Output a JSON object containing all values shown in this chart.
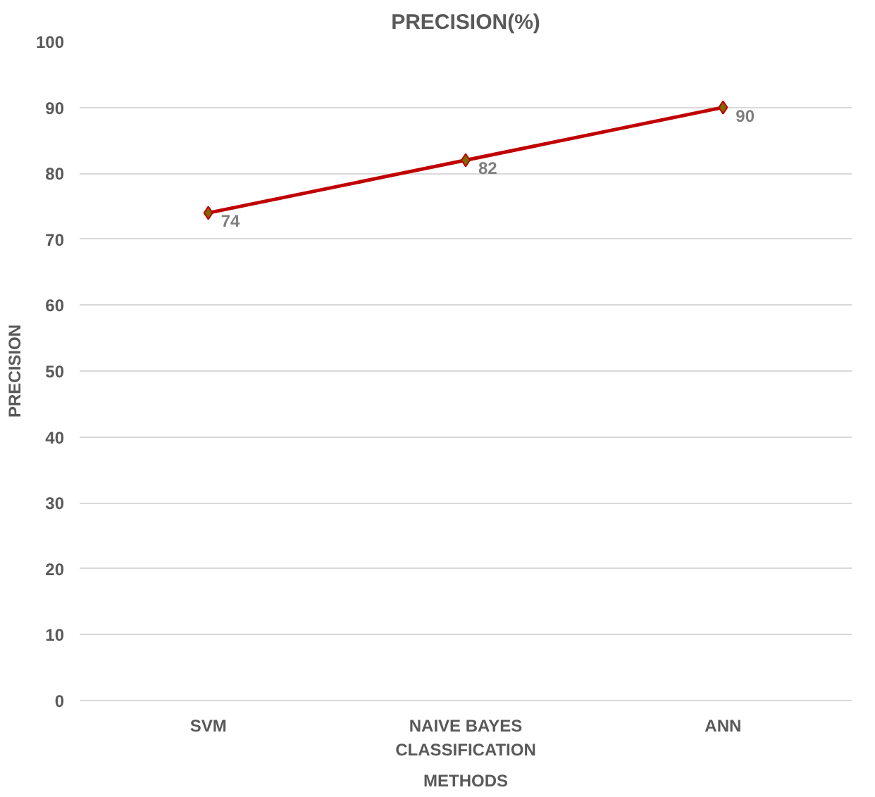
{
  "chart_data": {
    "type": "line",
    "title": "PRECISION(%)",
    "xlabel": "METHODS",
    "ylabel": "PRECISION",
    "categories": [
      "SVM",
      "NAIVE BAYES CLASSIFICATION",
      "ANN"
    ],
    "series": [
      {
        "color": "#c00000",
        "values": [
          74,
          82,
          90
        ]
      }
    ],
    "ylim": [
      0,
      100
    ],
    "yticks": [
      0,
      10,
      20,
      30,
      40,
      50,
      60,
      70,
      80,
      90,
      100
    ],
    "grid": "y",
    "marker": "diamond",
    "line_style": "solid",
    "data_labels": true
  }
}
